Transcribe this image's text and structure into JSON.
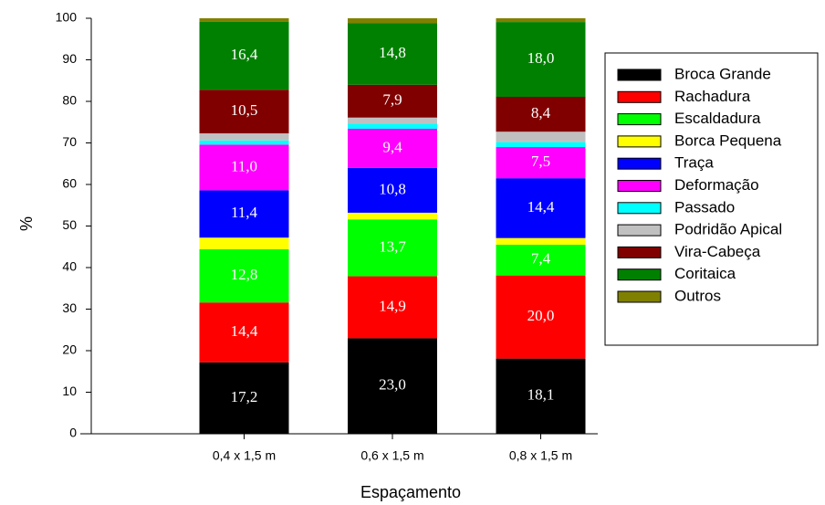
{
  "chart_data": {
    "type": "stacked-bar",
    "categories": [
      "0,4 x 1,5 m",
      "0,6 x 1,5 m",
      "0,8 x 1,5 m"
    ],
    "x_label": "Espaçamento",
    "y_label": "%",
    "ylim": [
      0,
      100
    ],
    "yticks": [
      0,
      10,
      20,
      30,
      40,
      50,
      60,
      70,
      80,
      90,
      100
    ],
    "legend": "right",
    "series": [
      {
        "name": "Broca Grande",
        "color": "#000000",
        "values": [
          17.2,
          23.0,
          18.1
        ],
        "value_labels": [
          "17,2",
          "23,0",
          "18,1"
        ]
      },
      {
        "name": "Rachadura",
        "color": "#ff0000",
        "values": [
          14.4,
          14.9,
          20.0
        ],
        "value_labels": [
          "14,4",
          "14,9",
          "20,0"
        ]
      },
      {
        "name": "Escaldadura",
        "color": "#00ff00",
        "values": [
          12.8,
          13.7,
          7.4
        ],
        "value_labels": [
          "12,8",
          "13,7",
          "7,4"
        ]
      },
      {
        "name": "Borca Pequena",
        "color": "#ffff00",
        "values": [
          2.8,
          1.6,
          1.6
        ]
      },
      {
        "name": "Traça",
        "color": "#0000ff",
        "values": [
          11.4,
          10.8,
          14.4
        ],
        "value_labels": [
          "11,4",
          "10,8",
          "14,4"
        ]
      },
      {
        "name": "Deformação",
        "color": "#ff00ff",
        "values": [
          11.0,
          9.4,
          7.5
        ],
        "value_labels": [
          "11,0",
          "9,4",
          "7,5"
        ]
      },
      {
        "name": "Passado",
        "color": "#00ffff",
        "values": [
          1.0,
          1.2,
          1.2
        ]
      },
      {
        "name": "Podridão  Apical",
        "color": "#c0c0c0",
        "values": [
          1.7,
          1.5,
          2.5
        ]
      },
      {
        "name": "Vira-Cabeça",
        "color": "#800000",
        "values": [
          10.5,
          7.9,
          8.4
        ],
        "value_labels": [
          "10,5",
          "7,9",
          "8,4"
        ]
      },
      {
        "name": "Coritaica",
        "color": "#008000",
        "values": [
          16.4,
          14.8,
          18.0
        ],
        "value_labels": [
          "16,4",
          "14,8",
          "18,0"
        ]
      },
      {
        "name": "Outros",
        "color": "#808000",
        "values": [
          0.8,
          1.2,
          0.9
        ]
      }
    ]
  }
}
